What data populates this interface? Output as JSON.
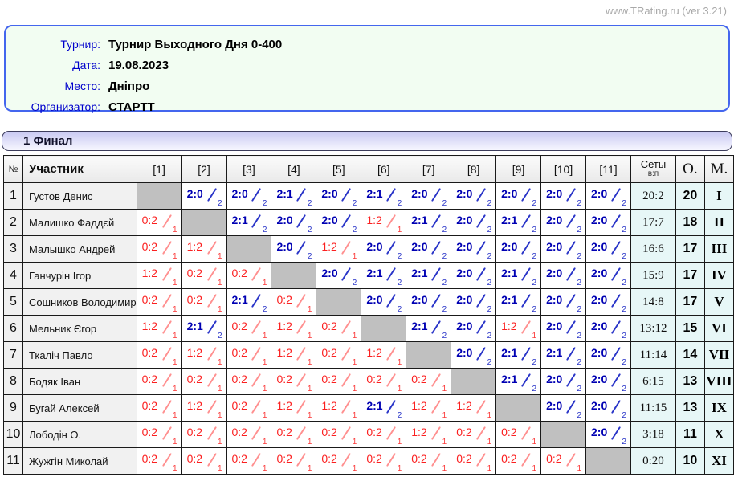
{
  "site_label": "www.TRating.ru (ver 3.21)",
  "info": {
    "rows": [
      {
        "label": "Турнир:",
        "value": "Турнир Выходного Дня 0-400"
      },
      {
        "label": "Дата:",
        "value": "19.08.2023"
      },
      {
        "label": "Место:",
        "value": "Дніпро"
      },
      {
        "label": "Организатор:",
        "value": "СТАРТТ"
      }
    ]
  },
  "section_title": "1 Финал",
  "colors": {
    "win_score": "#0000b3",
    "loss_score": "#fb2020",
    "diagonal_cell": "#c0c0c0",
    "totals_background": "#e7f7f7",
    "info_border": "#4466ee",
    "label_blue": "#0000cc"
  },
  "table": {
    "headers": {
      "num": "№",
      "participant": "Участник",
      "rounds": [
        "[1]",
        "[2]",
        "[3]",
        "[4]",
        "[5]",
        "[6]",
        "[7]",
        "[8]",
        "[9]",
        "[10]",
        "[11]"
      ],
      "sets": "Сеты",
      "sets_sub": "в:п",
      "points": "О.",
      "place": "М."
    },
    "rows": [
      {
        "num": "1",
        "name": "Густов Денис",
        "cells": [
          null,
          {
            "s": "2:0",
            "g": "2",
            "w": 1
          },
          {
            "s": "2:0",
            "g": "2",
            "w": 1
          },
          {
            "s": "2:1",
            "g": "2",
            "w": 1
          },
          {
            "s": "2:0",
            "g": "2",
            "w": 1
          },
          {
            "s": "2:1",
            "g": "2",
            "w": 1
          },
          {
            "s": "2:0",
            "g": "2",
            "w": 1
          },
          {
            "s": "2:0",
            "g": "2",
            "w": 1
          },
          {
            "s": "2:0",
            "g": "2",
            "w": 1
          },
          {
            "s": "2:0",
            "g": "2",
            "w": 1
          },
          {
            "s": "2:0",
            "g": "2",
            "w": 1
          }
        ],
        "sets": "20:2",
        "points": "20",
        "place": "I"
      },
      {
        "num": "2",
        "name": "Малишко Фаддєй",
        "cells": [
          {
            "s": "0:2",
            "g": "1",
            "w": 0
          },
          null,
          {
            "s": "2:1",
            "g": "2",
            "w": 1
          },
          {
            "s": "2:0",
            "g": "2",
            "w": 1
          },
          {
            "s": "2:0",
            "g": "2",
            "w": 1
          },
          {
            "s": "1:2",
            "g": "1",
            "w": 0
          },
          {
            "s": "2:1",
            "g": "2",
            "w": 1
          },
          {
            "s": "2:0",
            "g": "2",
            "w": 1
          },
          {
            "s": "2:1",
            "g": "2",
            "w": 1
          },
          {
            "s": "2:0",
            "g": "2",
            "w": 1
          },
          {
            "s": "2:0",
            "g": "2",
            "w": 1
          }
        ],
        "sets": "17:7",
        "points": "18",
        "place": "II"
      },
      {
        "num": "3",
        "name": "Малышко Андрей",
        "cells": [
          {
            "s": "0:2",
            "g": "1",
            "w": 0
          },
          {
            "s": "1:2",
            "g": "1",
            "w": 0
          },
          null,
          {
            "s": "2:0",
            "g": "2",
            "w": 1
          },
          {
            "s": "1:2",
            "g": "1",
            "w": 0
          },
          {
            "s": "2:0",
            "g": "2",
            "w": 1
          },
          {
            "s": "2:0",
            "g": "2",
            "w": 1
          },
          {
            "s": "2:0",
            "g": "2",
            "w": 1
          },
          {
            "s": "2:0",
            "g": "2",
            "w": 1
          },
          {
            "s": "2:0",
            "g": "2",
            "w": 1
          },
          {
            "s": "2:0",
            "g": "2",
            "w": 1
          }
        ],
        "sets": "16:6",
        "points": "17",
        "place": "III"
      },
      {
        "num": "4",
        "name": "Ганчурін Ігор",
        "cells": [
          {
            "s": "1:2",
            "g": "1",
            "w": 0
          },
          {
            "s": "0:2",
            "g": "1",
            "w": 0
          },
          {
            "s": "0:2",
            "g": "1",
            "w": 0
          },
          null,
          {
            "s": "2:0",
            "g": "2",
            "w": 1
          },
          {
            "s": "2:1",
            "g": "2",
            "w": 1
          },
          {
            "s": "2:1",
            "g": "2",
            "w": 1
          },
          {
            "s": "2:0",
            "g": "2",
            "w": 1
          },
          {
            "s": "2:1",
            "g": "2",
            "w": 1
          },
          {
            "s": "2:0",
            "g": "2",
            "w": 1
          },
          {
            "s": "2:0",
            "g": "2",
            "w": 1
          }
        ],
        "sets": "15:9",
        "points": "17",
        "place": "IV"
      },
      {
        "num": "5",
        "name": "Сошников Володимир",
        "cells": [
          {
            "s": "0:2",
            "g": "1",
            "w": 0
          },
          {
            "s": "0:2",
            "g": "1",
            "w": 0
          },
          {
            "s": "2:1",
            "g": "2",
            "w": 1
          },
          {
            "s": "0:2",
            "g": "1",
            "w": 0
          },
          null,
          {
            "s": "2:0",
            "g": "2",
            "w": 1
          },
          {
            "s": "2:0",
            "g": "2",
            "w": 1
          },
          {
            "s": "2:0",
            "g": "2",
            "w": 1
          },
          {
            "s": "2:1",
            "g": "2",
            "w": 1
          },
          {
            "s": "2:0",
            "g": "2",
            "w": 1
          },
          {
            "s": "2:0",
            "g": "2",
            "w": 1
          }
        ],
        "sets": "14:8",
        "points": "17",
        "place": "V"
      },
      {
        "num": "6",
        "name": "Мельник Єгор",
        "cells": [
          {
            "s": "1:2",
            "g": "1",
            "w": 0
          },
          {
            "s": "2:1",
            "g": "2",
            "w": 1
          },
          {
            "s": "0:2",
            "g": "1",
            "w": 0
          },
          {
            "s": "1:2",
            "g": "1",
            "w": 0
          },
          {
            "s": "0:2",
            "g": "1",
            "w": 0
          },
          null,
          {
            "s": "2:1",
            "g": "2",
            "w": 1
          },
          {
            "s": "2:0",
            "g": "2",
            "w": 1
          },
          {
            "s": "1:2",
            "g": "1",
            "w": 0
          },
          {
            "s": "2:0",
            "g": "2",
            "w": 1
          },
          {
            "s": "2:0",
            "g": "2",
            "w": 1
          }
        ],
        "sets": "13:12",
        "points": "15",
        "place": "VI"
      },
      {
        "num": "7",
        "name": "Ткаліч Павло",
        "cells": [
          {
            "s": "0:2",
            "g": "1",
            "w": 0
          },
          {
            "s": "1:2",
            "g": "1",
            "w": 0
          },
          {
            "s": "0:2",
            "g": "1",
            "w": 0
          },
          {
            "s": "1:2",
            "g": "1",
            "w": 0
          },
          {
            "s": "0:2",
            "g": "1",
            "w": 0
          },
          {
            "s": "1:2",
            "g": "1",
            "w": 0
          },
          null,
          {
            "s": "2:0",
            "g": "2",
            "w": 1
          },
          {
            "s": "2:1",
            "g": "2",
            "w": 1
          },
          {
            "s": "2:1",
            "g": "2",
            "w": 1
          },
          {
            "s": "2:0",
            "g": "2",
            "w": 1
          }
        ],
        "sets": "11:14",
        "points": "14",
        "place": "VII"
      },
      {
        "num": "8",
        "name": "Бодяк Іван",
        "cells": [
          {
            "s": "0:2",
            "g": "1",
            "w": 0
          },
          {
            "s": "0:2",
            "g": "1",
            "w": 0
          },
          {
            "s": "0:2",
            "g": "1",
            "w": 0
          },
          {
            "s": "0:2",
            "g": "1",
            "w": 0
          },
          {
            "s": "0:2",
            "g": "1",
            "w": 0
          },
          {
            "s": "0:2",
            "g": "1",
            "w": 0
          },
          {
            "s": "0:2",
            "g": "1",
            "w": 0
          },
          null,
          {
            "s": "2:1",
            "g": "2",
            "w": 1
          },
          {
            "s": "2:0",
            "g": "2",
            "w": 1
          },
          {
            "s": "2:0",
            "g": "2",
            "w": 1
          }
        ],
        "sets": "6:15",
        "points": "13",
        "place": "VIII"
      },
      {
        "num": "9",
        "name": "Бугай Алексей",
        "cells": [
          {
            "s": "0:2",
            "g": "1",
            "w": 0
          },
          {
            "s": "1:2",
            "g": "1",
            "w": 0
          },
          {
            "s": "0:2",
            "g": "1",
            "w": 0
          },
          {
            "s": "1:2",
            "g": "1",
            "w": 0
          },
          {
            "s": "1:2",
            "g": "1",
            "w": 0
          },
          {
            "s": "2:1",
            "g": "2",
            "w": 1
          },
          {
            "s": "1:2",
            "g": "1",
            "w": 0
          },
          {
            "s": "1:2",
            "g": "1",
            "w": 0
          },
          null,
          {
            "s": "2:0",
            "g": "2",
            "w": 1
          },
          {
            "s": "2:0",
            "g": "2",
            "w": 1
          }
        ],
        "sets": "11:15",
        "points": "13",
        "place": "IX"
      },
      {
        "num": "10",
        "name": "Лободін О.",
        "cells": [
          {
            "s": "0:2",
            "g": "1",
            "w": 0
          },
          {
            "s": "0:2",
            "g": "1",
            "w": 0
          },
          {
            "s": "0:2",
            "g": "1",
            "w": 0
          },
          {
            "s": "0:2",
            "g": "1",
            "w": 0
          },
          {
            "s": "0:2",
            "g": "1",
            "w": 0
          },
          {
            "s": "0:2",
            "g": "1",
            "w": 0
          },
          {
            "s": "1:2",
            "g": "1",
            "w": 0
          },
          {
            "s": "0:2",
            "g": "1",
            "w": 0
          },
          {
            "s": "0:2",
            "g": "1",
            "w": 0
          },
          null,
          {
            "s": "2:0",
            "g": "2",
            "w": 1
          }
        ],
        "sets": "3:18",
        "points": "11",
        "place": "X"
      },
      {
        "num": "11",
        "name": "Жужгін Миколай",
        "cells": [
          {
            "s": "0:2",
            "g": "1",
            "w": 0
          },
          {
            "s": "0:2",
            "g": "1",
            "w": 0
          },
          {
            "s": "0:2",
            "g": "1",
            "w": 0
          },
          {
            "s": "0:2",
            "g": "1",
            "w": 0
          },
          {
            "s": "0:2",
            "g": "1",
            "w": 0
          },
          {
            "s": "0:2",
            "g": "1",
            "w": 0
          },
          {
            "s": "0:2",
            "g": "1",
            "w": 0
          },
          {
            "s": "0:2",
            "g": "1",
            "w": 0
          },
          {
            "s": "0:2",
            "g": "1",
            "w": 0
          },
          {
            "s": "0:2",
            "g": "1",
            "w": 0
          },
          null
        ],
        "sets": "0:20",
        "points": "10",
        "place": "XI"
      }
    ]
  }
}
